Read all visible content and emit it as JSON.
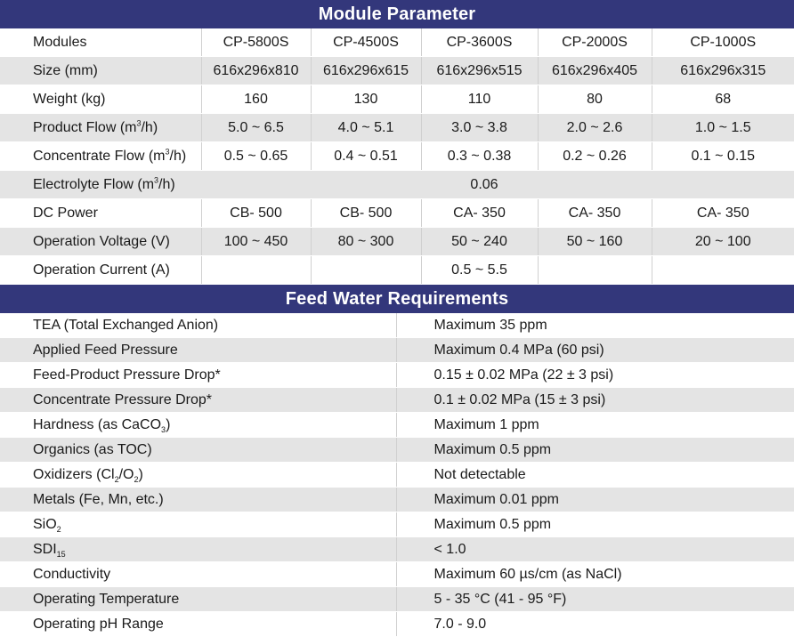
{
  "module_parameter": {
    "title": "Module Parameter",
    "header_row": {
      "label": "Modules",
      "models": [
        "CP-5800S",
        "CP-4500S",
        "CP-3600S",
        "CP-2000S",
        "CP-1000S"
      ]
    },
    "size": {
      "label": "Size (mm)",
      "values": [
        "616x296x810",
        "616x296x615",
        "616x296x515",
        "616x296x405",
        "616x296x315"
      ]
    },
    "weight": {
      "label": "Weight (kg)",
      "values": [
        "160",
        "130",
        "110",
        "80",
        "68"
      ]
    },
    "product_flow": {
      "label_pre": "Product Flow (m",
      "label_sup": "3",
      "label_post": "/h)",
      "values": [
        "5.0 ~ 6.5",
        "4.0 ~ 5.1",
        "3.0 ~ 3.8",
        "2.0 ~ 2.6",
        "1.0 ~ 1.5"
      ]
    },
    "concentrate_flow": {
      "label_pre": "Concentrate Flow (m",
      "label_sup": "3",
      "label_post": "/h)",
      "values": [
        "0.5 ~ 0.65",
        "0.4 ~ 0.51",
        "0.3 ~ 0.38",
        "0.2 ~ 0.26",
        "0.1 ~ 0.15"
      ]
    },
    "electrolyte_flow": {
      "label_pre": "Electrolyte Flow (m",
      "label_sup": "3",
      "label_post": "/h)",
      "value": "0.06"
    },
    "dc_power": {
      "label": "DC Power",
      "values": [
        "CB- 500",
        "CB- 500",
        "CA- 350",
        "CA- 350",
        "CA- 350"
      ]
    },
    "operation_voltage": {
      "label": "Operation Voltage (V)",
      "values": [
        "100 ~ 450",
        "80 ~ 300",
        "50 ~ 240",
        "50 ~ 160",
        "20 ~ 100"
      ]
    },
    "operation_current": {
      "label": "Operation Current (A)",
      "value": "0.5 ~ 5.5"
    }
  },
  "feed_water": {
    "title": "Feed Water Requirements",
    "rows": {
      "tea": {
        "label": "TEA (Total Exchanged Anion)",
        "value": "Maximum 35 ppm"
      },
      "applied_feed_pressure": {
        "label": "Applied Feed Pressure",
        "value": "Maximum 0.4 MPa (60 psi)"
      },
      "feed_product_drop": {
        "label": "Feed-Product Pressure Drop*",
        "value": "0.15 ± 0.02 MPa (22 ± 3 psi)"
      },
      "concentrate_drop": {
        "label": "Concentrate Pressure Drop*",
        "value": "0.1 ± 0.02 MPa (15 ± 3 psi)"
      },
      "hardness": {
        "label_pre": "Hardness (as CaCO",
        "label_sub": "3",
        "label_post": ")",
        "value": "Maximum 1 ppm"
      },
      "organics": {
        "label": "Organics (as TOC)",
        "value": "Maximum 0.5 ppm"
      },
      "oxidizers": {
        "label_pre": "Oxidizers (Cl",
        "label_sub1": "2",
        "label_mid": "/O",
        "label_sub2": "2",
        "label_post": ")",
        "value": "Not detectable"
      },
      "metals": {
        "label": "Metals (Fe, Mn, etc.)",
        "value": "Maximum 0.01 ppm"
      },
      "sio2": {
        "label_pre": "SiO",
        "label_sub": "2",
        "value": "Maximum 0.5 ppm"
      },
      "sdi": {
        "label_pre": "SDI",
        "label_sub": "15",
        "value": "< 1.0"
      },
      "conductivity": {
        "label": "Conductivity",
        "value": "Maximum 60 µs/cm (as NaCl)"
      },
      "temperature": {
        "label": "Operating Temperature",
        "value": "5 - 35 °C (41 - 95 °F)"
      },
      "ph": {
        "label": "Operating pH Range",
        "value": "7.0 - 9.0"
      }
    }
  }
}
